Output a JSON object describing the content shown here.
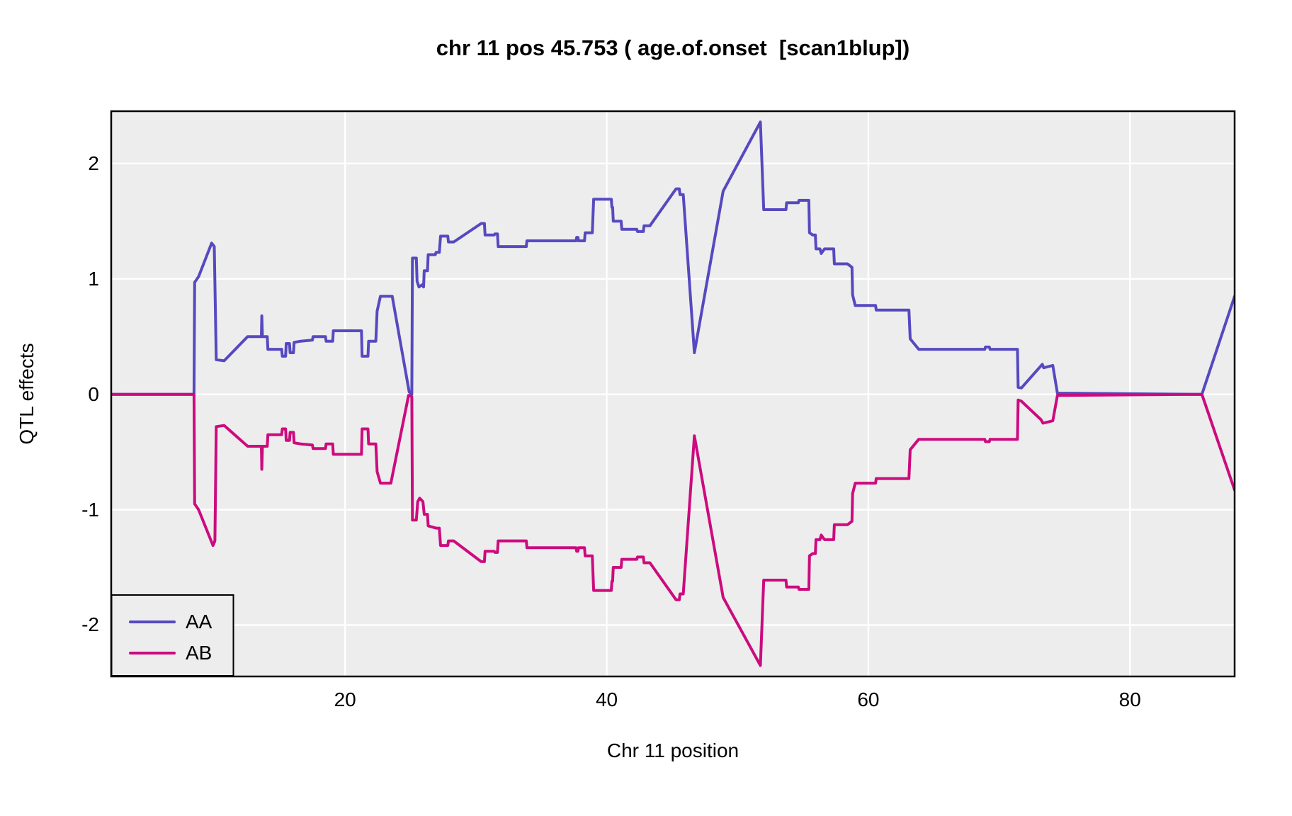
{
  "title": "chr 11 pos 45.753 ( age.of.onset  [scan1blup])",
  "colors": {
    "aa_line": "#5649C0",
    "ab_line": "#CC0B7E",
    "panel_background": "#EDEDED",
    "gridline": "#FFFFFF",
    "panel_border": "#000000",
    "text": "#000000"
  },
  "chart_data": {
    "type": "line",
    "title": "chr 11 pos 45.753 ( age.of.onset  [scan1blup])",
    "xlabel": "Chr 11 position",
    "ylabel": "QTL effects",
    "xlim": [
      2.12,
      88.0
    ],
    "ylim": [
      -2.445,
      2.453
    ],
    "x_ticks": [
      20,
      40,
      60,
      80
    ],
    "y_ticks": [
      2,
      1,
      0,
      -1,
      -2
    ],
    "grid": "major white gridlines on gray panel",
    "legend_position": "bottom-left",
    "series": [
      {
        "name": "AA",
        "color": "#5649C0",
        "points": [
          [
            2.12,
            0
          ],
          [
            8.45,
            0
          ],
          [
            8.5,
            0.97
          ],
          [
            8.8,
            1.02
          ],
          [
            9.8,
            1.31
          ],
          [
            10.0,
            1.28
          ],
          [
            10.15,
            0.3
          ],
          [
            10.75,
            0.29
          ],
          [
            12.55,
            0.5
          ],
          [
            13.6,
            0.5
          ],
          [
            13.63,
            0.68
          ],
          [
            13.68,
            0.5
          ],
          [
            14.05,
            0.5
          ],
          [
            14.1,
            0.39
          ],
          [
            15.15,
            0.39
          ],
          [
            15.2,
            0.33
          ],
          [
            15.45,
            0.33
          ],
          [
            15.5,
            0.44
          ],
          [
            15.75,
            0.44
          ],
          [
            15.8,
            0.36
          ],
          [
            16.05,
            0.36
          ],
          [
            16.1,
            0.45
          ],
          [
            16.6,
            0.46
          ],
          [
            17.5,
            0.47
          ],
          [
            17.55,
            0.5
          ],
          [
            18.5,
            0.5
          ],
          [
            18.55,
            0.46
          ],
          [
            19.05,
            0.46
          ],
          [
            19.1,
            0.55
          ],
          [
            21.25,
            0.55
          ],
          [
            21.3,
            0.33
          ],
          [
            21.75,
            0.33
          ],
          [
            21.8,
            0.46
          ],
          [
            22.35,
            0.46
          ],
          [
            22.45,
            0.72
          ],
          [
            22.7,
            0.85
          ],
          [
            23.6,
            0.85
          ],
          [
            24.9,
            0.02
          ],
          [
            25.1,
            0.0
          ],
          [
            25.15,
            1.18
          ],
          [
            25.45,
            1.18
          ],
          [
            25.5,
            0.98
          ],
          [
            25.65,
            0.93
          ],
          [
            25.9,
            0.95
          ],
          [
            26.0,
            0.93
          ],
          [
            26.05,
            1.07
          ],
          [
            26.3,
            1.07
          ],
          [
            26.35,
            1.21
          ],
          [
            26.9,
            1.21
          ],
          [
            26.95,
            1.23
          ],
          [
            27.2,
            1.23
          ],
          [
            27.3,
            1.37
          ],
          [
            27.85,
            1.37
          ],
          [
            27.9,
            1.32
          ],
          [
            28.3,
            1.32
          ],
          [
            30.4,
            1.48
          ],
          [
            30.65,
            1.48
          ],
          [
            30.7,
            1.38
          ],
          [
            31.4,
            1.38
          ],
          [
            31.45,
            1.39
          ],
          [
            31.65,
            1.39
          ],
          [
            31.7,
            1.28
          ],
          [
            33.85,
            1.28
          ],
          [
            33.9,
            1.33
          ],
          [
            37.65,
            1.33
          ],
          [
            37.7,
            1.36
          ],
          [
            37.8,
            1.36
          ],
          [
            37.85,
            1.33
          ],
          [
            38.3,
            1.33
          ],
          [
            38.35,
            1.4
          ],
          [
            38.9,
            1.4
          ],
          [
            39.0,
            1.69
          ],
          [
            40.35,
            1.69
          ],
          [
            40.4,
            1.62
          ],
          [
            40.45,
            1.62
          ],
          [
            40.5,
            1.5
          ],
          [
            41.1,
            1.5
          ],
          [
            41.15,
            1.43
          ],
          [
            42.3,
            1.43
          ],
          [
            42.35,
            1.41
          ],
          [
            42.8,
            1.41
          ],
          [
            42.85,
            1.46
          ],
          [
            43.3,
            1.46
          ],
          [
            45.3,
            1.78
          ],
          [
            45.55,
            1.78
          ],
          [
            45.6,
            1.73
          ],
          [
            45.85,
            1.73
          ],
          [
            46.7,
            0.36
          ],
          [
            48.9,
            1.76
          ],
          [
            51.75,
            2.36
          ],
          [
            52.0,
            1.6
          ],
          [
            53.7,
            1.6
          ],
          [
            53.75,
            1.66
          ],
          [
            54.65,
            1.66
          ],
          [
            54.7,
            1.68
          ],
          [
            55.45,
            1.68
          ],
          [
            55.5,
            1.4
          ],
          [
            55.75,
            1.38
          ],
          [
            55.95,
            1.38
          ],
          [
            56.0,
            1.26
          ],
          [
            56.3,
            1.26
          ],
          [
            56.4,
            1.22
          ],
          [
            56.65,
            1.26
          ],
          [
            57.35,
            1.26
          ],
          [
            57.4,
            1.13
          ],
          [
            58.4,
            1.13
          ],
          [
            58.75,
            1.1
          ],
          [
            58.8,
            0.86
          ],
          [
            59.0,
            0.77
          ],
          [
            60.55,
            0.77
          ],
          [
            60.6,
            0.73
          ],
          [
            63.1,
            0.73
          ],
          [
            63.2,
            0.48
          ],
          [
            63.85,
            0.39
          ],
          [
            68.9,
            0.39
          ],
          [
            68.95,
            0.41
          ],
          [
            69.25,
            0.41
          ],
          [
            69.3,
            0.39
          ],
          [
            71.4,
            0.39
          ],
          [
            71.45,
            0.06
          ],
          [
            71.7,
            0.055
          ],
          [
            73.3,
            0.26
          ],
          [
            73.4,
            0.23
          ],
          [
            74.1,
            0.25
          ],
          [
            74.45,
            0.01
          ],
          [
            85.5,
            0.0
          ],
          [
            88.0,
            0.85
          ]
        ]
      },
      {
        "name": "AB",
        "color": "#CC0B7E",
        "points": [
          [
            2.12,
            0
          ],
          [
            8.45,
            0
          ],
          [
            8.5,
            -0.95
          ],
          [
            8.8,
            -1.0
          ],
          [
            9.9,
            -1.31
          ],
          [
            10.05,
            -1.27
          ],
          [
            10.15,
            -0.28
          ],
          [
            10.75,
            -0.27
          ],
          [
            12.55,
            -0.45
          ],
          [
            13.6,
            -0.45
          ],
          [
            13.63,
            -0.65
          ],
          [
            13.68,
            -0.45
          ],
          [
            14.05,
            -0.45
          ],
          [
            14.1,
            -0.35
          ],
          [
            15.15,
            -0.35
          ],
          [
            15.2,
            -0.3
          ],
          [
            15.45,
            -0.3
          ],
          [
            15.5,
            -0.4
          ],
          [
            15.75,
            -0.4
          ],
          [
            15.8,
            -0.33
          ],
          [
            16.05,
            -0.33
          ],
          [
            16.1,
            -0.42
          ],
          [
            16.6,
            -0.43
          ],
          [
            17.5,
            -0.44
          ],
          [
            17.55,
            -0.47
          ],
          [
            18.5,
            -0.47
          ],
          [
            18.55,
            -0.43
          ],
          [
            19.05,
            -0.43
          ],
          [
            19.1,
            -0.52
          ],
          [
            21.25,
            -0.52
          ],
          [
            21.3,
            -0.3
          ],
          [
            21.75,
            -0.3
          ],
          [
            21.8,
            -0.43
          ],
          [
            22.35,
            -0.43
          ],
          [
            22.45,
            -0.67
          ],
          [
            22.7,
            -0.77
          ],
          [
            23.5,
            -0.77
          ],
          [
            24.85,
            -0.01
          ],
          [
            25.1,
            -0.02
          ],
          [
            25.15,
            -1.09
          ],
          [
            25.45,
            -1.09
          ],
          [
            25.55,
            -0.93
          ],
          [
            25.7,
            -0.9
          ],
          [
            25.95,
            -0.93
          ],
          [
            26.05,
            -1.04
          ],
          [
            26.3,
            -1.04
          ],
          [
            26.35,
            -1.14
          ],
          [
            26.95,
            -1.16
          ],
          [
            27.2,
            -1.16
          ],
          [
            27.3,
            -1.31
          ],
          [
            27.85,
            -1.31
          ],
          [
            27.9,
            -1.27
          ],
          [
            28.3,
            -1.27
          ],
          [
            30.4,
            -1.45
          ],
          [
            30.65,
            -1.45
          ],
          [
            30.7,
            -1.36
          ],
          [
            31.4,
            -1.36
          ],
          [
            31.45,
            -1.37
          ],
          [
            31.65,
            -1.37
          ],
          [
            31.7,
            -1.27
          ],
          [
            33.85,
            -1.27
          ],
          [
            33.9,
            -1.33
          ],
          [
            37.65,
            -1.33
          ],
          [
            37.7,
            -1.36
          ],
          [
            37.8,
            -1.36
          ],
          [
            37.85,
            -1.33
          ],
          [
            38.3,
            -1.33
          ],
          [
            38.35,
            -1.4
          ],
          [
            38.9,
            -1.4
          ],
          [
            39.0,
            -1.7
          ],
          [
            40.35,
            -1.7
          ],
          [
            40.4,
            -1.62
          ],
          [
            40.45,
            -1.62
          ],
          [
            40.5,
            -1.5
          ],
          [
            41.1,
            -1.5
          ],
          [
            41.15,
            -1.43
          ],
          [
            42.3,
            -1.43
          ],
          [
            42.35,
            -1.41
          ],
          [
            42.8,
            -1.41
          ],
          [
            42.85,
            -1.46
          ],
          [
            43.3,
            -1.46
          ],
          [
            45.3,
            -1.78
          ],
          [
            45.55,
            -1.78
          ],
          [
            45.6,
            -1.73
          ],
          [
            45.85,
            -1.73
          ],
          [
            46.7,
            -0.36
          ],
          [
            48.9,
            -1.76
          ],
          [
            51.75,
            -2.35
          ],
          [
            52.0,
            -1.61
          ],
          [
            53.7,
            -1.61
          ],
          [
            53.75,
            -1.67
          ],
          [
            54.65,
            -1.67
          ],
          [
            54.7,
            -1.69
          ],
          [
            55.45,
            -1.69
          ],
          [
            55.5,
            -1.4
          ],
          [
            55.75,
            -1.38
          ],
          [
            55.95,
            -1.38
          ],
          [
            56.0,
            -1.26
          ],
          [
            56.3,
            -1.26
          ],
          [
            56.4,
            -1.22
          ],
          [
            56.65,
            -1.26
          ],
          [
            57.35,
            -1.26
          ],
          [
            57.4,
            -1.13
          ],
          [
            58.4,
            -1.13
          ],
          [
            58.75,
            -1.1
          ],
          [
            58.8,
            -0.86
          ],
          [
            59.0,
            -0.77
          ],
          [
            60.55,
            -0.77
          ],
          [
            60.6,
            -0.73
          ],
          [
            63.1,
            -0.73
          ],
          [
            63.2,
            -0.48
          ],
          [
            63.85,
            -0.39
          ],
          [
            68.9,
            -0.39
          ],
          [
            68.95,
            -0.41
          ],
          [
            69.25,
            -0.41
          ],
          [
            69.3,
            -0.39
          ],
          [
            71.4,
            -0.39
          ],
          [
            71.45,
            -0.05
          ],
          [
            71.7,
            -0.06
          ],
          [
            73.2,
            -0.22
          ],
          [
            73.35,
            -0.25
          ],
          [
            74.1,
            -0.23
          ],
          [
            74.45,
            -0.01
          ],
          [
            85.5,
            0.0
          ],
          [
            88.0,
            -0.83
          ]
        ]
      }
    ]
  },
  "legend": {
    "entries": [
      {
        "label": "AA",
        "color": "#5649C0"
      },
      {
        "label": "AB",
        "color": "#CC0B7E"
      }
    ]
  }
}
